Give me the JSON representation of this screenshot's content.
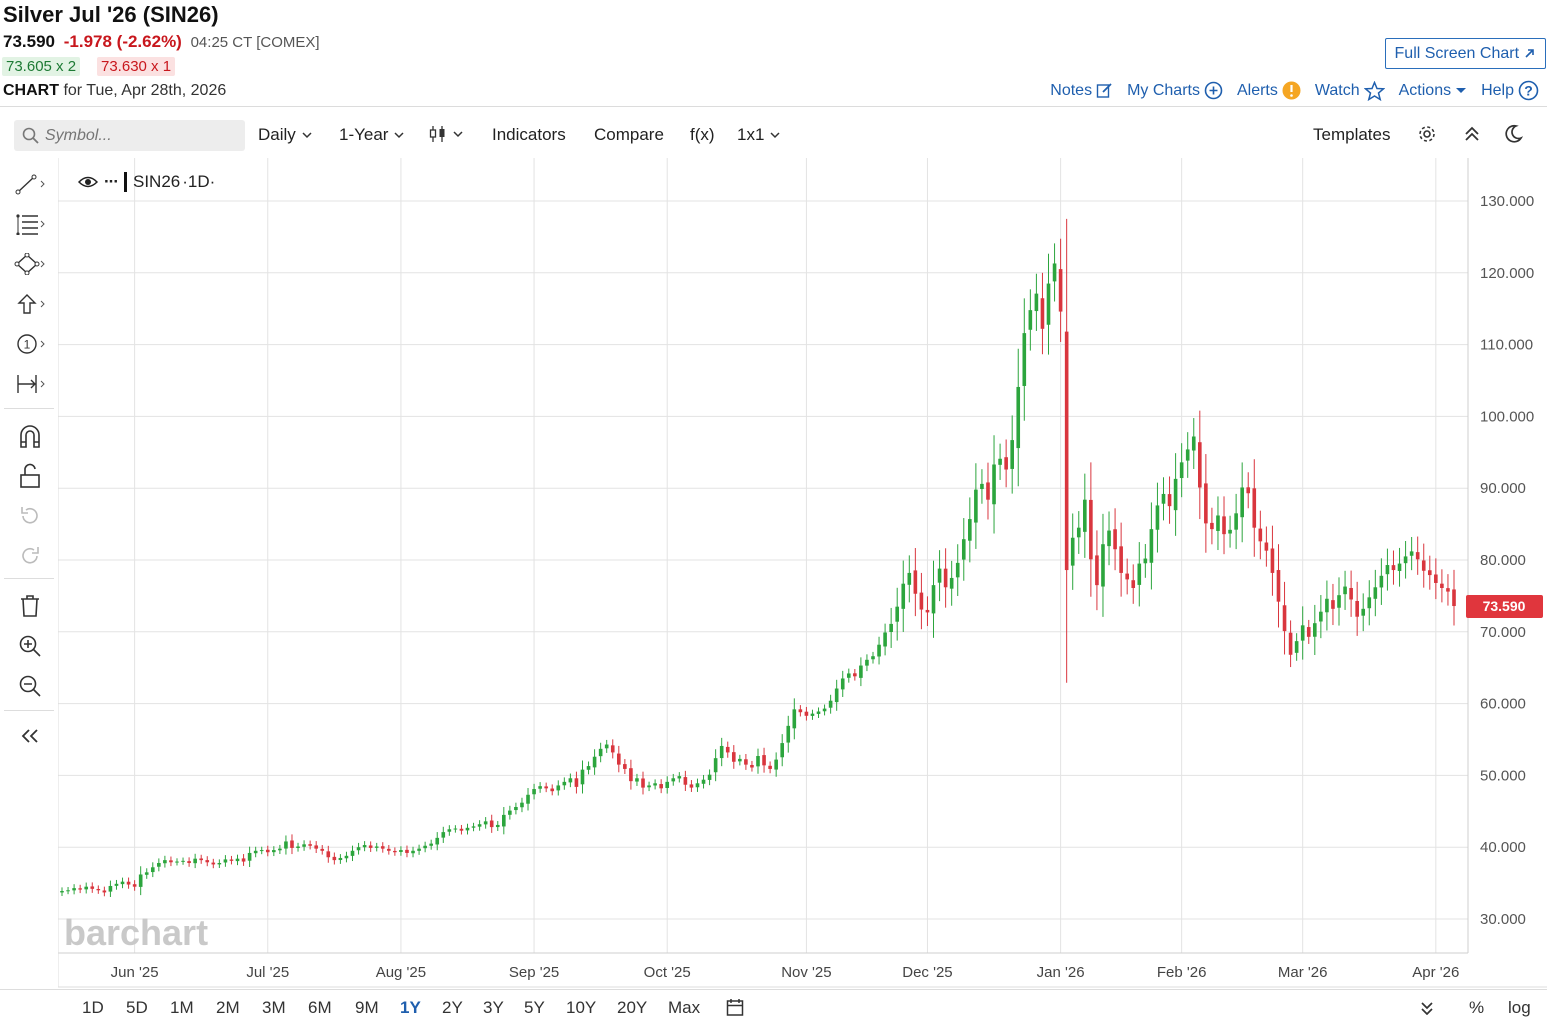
{
  "header": {
    "title": "Silver Jul '26 (SIN26)",
    "last": "73.590",
    "change": "-1.978 (-2.62%)",
    "time": "04:25 CT [COMEX]",
    "bid": "73.605 x 2",
    "ask": "73.630 x 1",
    "chart_label": "CHART",
    "chart_date": "for Tue, Apr 28th, 2026",
    "full_screen": "Full Screen Chart"
  },
  "links": {
    "notes": "Notes",
    "my_charts": "My Charts",
    "alerts": "Alerts",
    "watch": "Watch",
    "actions": "Actions",
    "help": "Help"
  },
  "toolbar": {
    "symbol_placeholder": "Symbol...",
    "interval": "Daily",
    "period": "1-Year",
    "indicators": "Indicators",
    "compare": "Compare",
    "fx": "f(x)",
    "layout": "1x1",
    "templates": "Templates"
  },
  "legend": {
    "symbol": "SIN26",
    "interval": "·1D·"
  },
  "logo": "barchart",
  "ranges": [
    "1D",
    "5D",
    "1M",
    "2M",
    "3M",
    "6M",
    "9M",
    "1Y",
    "2Y",
    "3Y",
    "5Y",
    "10Y",
    "20Y",
    "Max"
  ],
  "active_range": "1Y",
  "bottom_right": {
    "percent": "%",
    "log": "log"
  },
  "colors": {
    "up": "#2ca53d",
    "down": "#d9363e",
    "price_tag": "#e0363d",
    "link": "#1f5fae"
  },
  "chart_data": {
    "type": "candlestick",
    "y_ticks": [
      "30.000",
      "40.000",
      "50.000",
      "60.000",
      "70.000",
      "80.000",
      "90.000",
      "100.000",
      "110.000",
      "120.000",
      "130.000"
    ],
    "ylim": [
      25,
      135
    ],
    "x_ticks": [
      "Jun '25",
      "Jul '25",
      "Aug '25",
      "Sep '25",
      "Oct '25",
      "Nov '25",
      "Dec '25",
      "Jan '26",
      "Feb '26",
      "Mar '26",
      "Apr '26"
    ],
    "last_price_label": "73.590",
    "last_price": 73.59,
    "closes": [
      33.9,
      34.0,
      34.3,
      34.1,
      34.5,
      34.2,
      34.0,
      33.7,
      34.6,
      34.9,
      35.2,
      34.8,
      34.5,
      36.2,
      36.5,
      37.2,
      37.8,
      38.2,
      37.9,
      38.0,
      38.1,
      37.8,
      38.4,
      38.2,
      37.9,
      37.6,
      37.8,
      38.3,
      38.1,
      38.4,
      38.0,
      39.2,
      39.5,
      39.6,
      39.3,
      39.6,
      39.8,
      40.8,
      39.9,
      40.1,
      40.4,
      40.2,
      39.8,
      39.5,
      38.6,
      38.2,
      38.5,
      38.8,
      39.5,
      40.0,
      40.3,
      39.9,
      40.1,
      39.8,
      39.5,
      39.3,
      39.6,
      39.2,
      39.5,
      39.8,
      40.2,
      40.5,
      41.3,
      42.1,
      42.5,
      42.6,
      42.3,
      42.7,
      42.9,
      43.2,
      43.6,
      42.8,
      43.1,
      44.5,
      45.1,
      45.6,
      46.2,
      47.3,
      48.1,
      48.5,
      48.2,
      47.8,
      48.6,
      49.1,
      49.6,
      48.4,
      50.8,
      51.3,
      52.6,
      53.7,
      54.3,
      53.2,
      51.5,
      50.9,
      49.2,
      49.6,
      48.3,
      48.6,
      48.9,
      48.2,
      49.1,
      49.6,
      49.9,
      48.7,
      48.3,
      48.9,
      49.4,
      50.1,
      52.4,
      54.1,
      53.2,
      51.9,
      52.3,
      51.5,
      51.1,
      52.7,
      51.4,
      50.9,
      52.2,
      54.5,
      56.9,
      59.2,
      58.8,
      58.3,
      58.6,
      58.9,
      59.3,
      60.4,
      62.1,
      63.5,
      64.2,
      63.8,
      65.3,
      66.1,
      66.6,
      68.2,
      69.9,
      71.1,
      73.5,
      76.7,
      78.2,
      75.3,
      73.1,
      72.7,
      76.5,
      78.8,
      76.2,
      77.5,
      79.6,
      82.9,
      85.7,
      89.8,
      90.6,
      88.4,
      93.3,
      94.1,
      92.6,
      96.7,
      104.1,
      111.6,
      114.8,
      117.1,
      112.2,
      118.5,
      121.3,
      114.6,
      78.6,
      83.1,
      84.5,
      88.4,
      80.1,
      76.5,
      82.2,
      84.1,
      81.5,
      78.2,
      77.3,
      76.1,
      79.5,
      80.2,
      84.3,
      87.6,
      89.2,
      87.5,
      91.3,
      93.6,
      95.4,
      97.2,
      90.1,
      85.1,
      84.3,
      86.2,
      83.6,
      84.2,
      86.5,
      90.1,
      89.3,
      84.5,
      82.6,
      81.3,
      78.2,
      74.2,
      70.1,
      66.8,
      68.7,
      70.9,
      69.3,
      71.2,
      72.8,
      74.6,
      73.2,
      75.1,
      76.3,
      74.5,
      72.1,
      73.2,
      74.8,
      76.2,
      77.8,
      79.3,
      78.6,
      79.5,
      80.5,
      81.2,
      80.1,
      78.5,
      77.9,
      76.8,
      76.1,
      75.6,
      73.59
    ],
    "x_tick_bar_index": [
      12,
      34,
      56,
      78,
      100,
      123,
      143,
      165,
      185,
      205,
      227
    ]
  }
}
